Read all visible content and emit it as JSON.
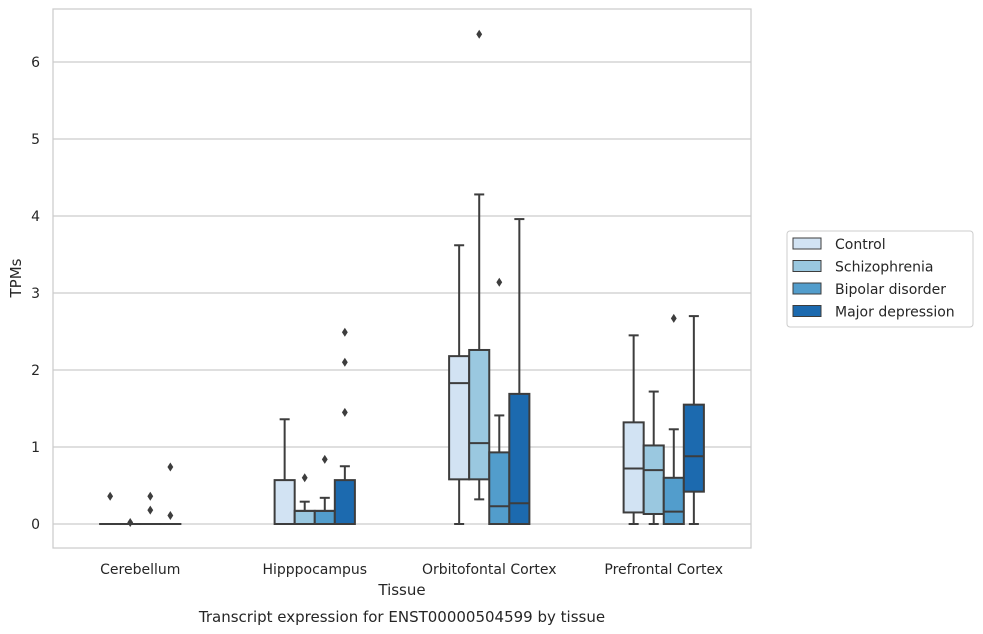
{
  "chart_data": {
    "type": "boxplot",
    "title": "",
    "caption": "Transcript expression for ENST00000504599 by tissue",
    "xlabel": "Tissue",
    "ylabel": "TPMs",
    "ylim": [
      -0.3,
      6.7
    ],
    "yticks": [
      0,
      1,
      2,
      3,
      4,
      5,
      6
    ],
    "grid": "horizontal",
    "legend_position": "right",
    "categories": [
      "Cerebellum",
      "Hipppocampus",
      "Orbitofontal Cortex",
      "Prefrontal Cortex"
    ],
    "series": [
      {
        "name": "Control",
        "color": "#d2e3f3",
        "boxes": [
          {
            "whislo": 0,
            "q1": 0,
            "med": 0,
            "q3": 0,
            "whishi": 0,
            "fliers": [
              0.36
            ]
          },
          {
            "whislo": 0,
            "q1": 0,
            "med": 0,
            "q3": 0.57,
            "whishi": 1.36,
            "fliers": []
          },
          {
            "whislo": 0,
            "q1": 0.58,
            "med": 1.83,
            "q3": 2.18,
            "whishi": 3.62,
            "fliers": []
          },
          {
            "whislo": 0,
            "q1": 0.15,
            "med": 0.72,
            "q3": 1.32,
            "whishi": 2.45,
            "fliers": []
          }
        ]
      },
      {
        "name": "Schizophrenia",
        "color": "#9ac8e0",
        "boxes": [
          {
            "whislo": 0,
            "q1": 0,
            "med": 0,
            "q3": 0,
            "whishi": 0,
            "fliers": [
              0.02
            ]
          },
          {
            "whislo": 0,
            "q1": 0,
            "med": 0.17,
            "q3": 0.17,
            "whishi": 0.29,
            "fliers": [
              0.6
            ]
          },
          {
            "whislo": 0.32,
            "q1": 0.58,
            "med": 1.05,
            "q3": 2.26,
            "whishi": 4.28,
            "fliers": [
              6.36
            ]
          },
          {
            "whislo": 0,
            "q1": 0.13,
            "med": 0.7,
            "q3": 1.02,
            "whishi": 1.72,
            "fliers": []
          }
        ]
      },
      {
        "name": "Bipolar disorder",
        "color": "#529dcc",
        "boxes": [
          {
            "whislo": 0,
            "q1": 0,
            "med": 0,
            "q3": 0,
            "whishi": 0,
            "fliers": [
              0.36,
              0.18
            ]
          },
          {
            "whislo": 0,
            "q1": 0,
            "med": 0.17,
            "q3": 0.17,
            "whishi": 0.34,
            "fliers": [
              0.84
            ]
          },
          {
            "whislo": 0,
            "q1": 0,
            "med": 0.23,
            "q3": 0.93,
            "whishi": 1.41,
            "fliers": [
              3.14
            ]
          },
          {
            "whislo": 0,
            "q1": 0,
            "med": 0.16,
            "q3": 0.6,
            "whishi": 1.23,
            "fliers": [
              2.67
            ]
          }
        ]
      },
      {
        "name": "Major depression",
        "color": "#1c6aaf",
        "boxes": [
          {
            "whislo": 0,
            "q1": 0,
            "med": 0,
            "q3": 0,
            "whishi": 0,
            "fliers": [
              0.74,
              0.11
            ]
          },
          {
            "whislo": 0,
            "q1": 0,
            "med": 0,
            "q3": 0.57,
            "whishi": 0.75,
            "fliers": [
              1.45,
              2.1,
              2.49
            ]
          },
          {
            "whislo": 0,
            "q1": 0,
            "med": 0.27,
            "q3": 1.69,
            "whishi": 3.96,
            "fliers": []
          },
          {
            "whislo": 0,
            "q1": 0.42,
            "med": 0.88,
            "q3": 1.55,
            "whishi": 2.7,
            "fliers": []
          }
        ]
      }
    ]
  }
}
